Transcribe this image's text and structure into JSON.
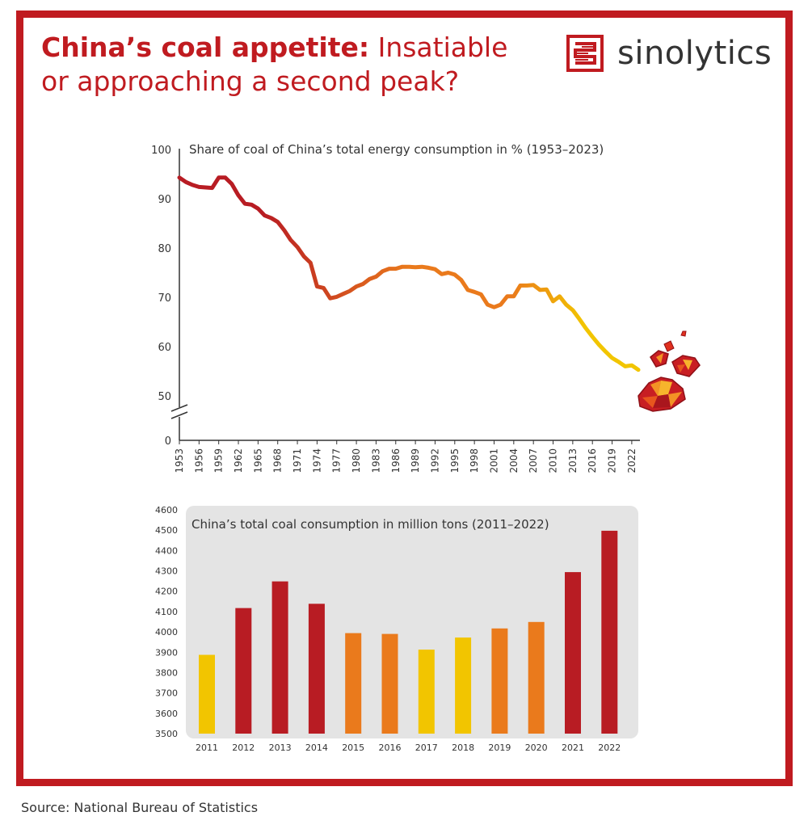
{
  "header": {
    "title_bold": "China’s coal appetite:",
    "title_rest": " Insatiable",
    "title_line2": "or approaching a second peak?",
    "logo_text": "sinolytics"
  },
  "footer": {
    "source": "Source: National Bureau of Statistics"
  },
  "colors": {
    "frame": "#c01b20",
    "dark_red": "#b81c23",
    "orange": "#ea7a1c",
    "yellow": "#f2c500",
    "panel": "#e4e4e4",
    "text": "#333333"
  },
  "chart_data": [
    {
      "type": "line",
      "title": "Share of coal of China’s total energy consumption in % (1953–2023)",
      "ylim": [
        50,
        100
      ],
      "y_axis_break": true,
      "y_ticks": [
        "100",
        "90",
        "80",
        "70",
        "60",
        "50",
        "0"
      ],
      "x_ticks": [
        "1953",
        "1956",
        "1959",
        "1962",
        "1965",
        "1968",
        "1971",
        "1974",
        "1977",
        "1980",
        "1983",
        "1986",
        "1989",
        "1992",
        "1995",
        "1998",
        "2001",
        "2004",
        "2007",
        "2010",
        "2013",
        "2016",
        "2019",
        "2022"
      ],
      "line_colors": [
        "#b81c23",
        "#ea7a1c",
        "#f2c500"
      ],
      "series": [
        {
          "x": [
            1953,
            1954,
            1955,
            1956,
            1957,
            1958,
            1959,
            1960,
            1961,
            1962,
            1963,
            1964,
            1965,
            1966,
            1967,
            1968,
            1969,
            1970,
            1971,
            1972,
            1973,
            1974,
            1975,
            1976,
            1977,
            1978,
            1979,
            1980,
            1981,
            1982,
            1983,
            1984,
            1985,
            1986,
            1987,
            1988,
            1989,
            1990,
            1991,
            1992,
            1993,
            1994,
            1995,
            1996,
            1997,
            1998,
            1999,
            2000,
            2001,
            2002,
            2003,
            2004,
            2005,
            2006,
            2007,
            2008,
            2009,
            2010,
            2011,
            2012,
            2013,
            2014,
            2015,
            2016,
            2017,
            2018,
            2019,
            2020,
            2021,
            2022,
            2023
          ],
          "values": [
            94.3,
            93.4,
            92.8,
            92.4,
            92.3,
            92.2,
            94.3,
            94.3,
            93,
            90.7,
            89,
            88.8,
            88,
            86.6,
            86.1,
            85.3,
            83.6,
            81.6,
            80.2,
            78.3,
            77,
            72.2,
            71.9,
            69.8,
            70.1,
            70.7,
            71.3,
            72.2,
            72.7,
            73.7,
            74.2,
            75.3,
            75.8,
            75.8,
            76.2,
            76.2,
            76.1,
            76.2,
            76,
            75.7,
            74.7,
            75.0,
            74.6,
            73.5,
            71.5,
            71.1,
            70.6,
            68.5,
            68.0,
            68.5,
            70.2,
            70.2,
            72.4,
            72.4,
            72.5,
            71.5,
            71.6,
            69.2,
            70.2,
            68.5,
            67.4,
            65.6,
            63.7,
            62.0,
            60.4,
            59.0,
            57.7,
            56.9,
            56.0,
            56.2,
            55.3
          ]
        }
      ]
    },
    {
      "type": "bar",
      "title": "China’s total coal consumption in million tons (2011–2022)",
      "ylim": [
        3500,
        4600
      ],
      "y_ticks": [
        "4600",
        "4500",
        "4400",
        "4300",
        "4200",
        "4100",
        "4000",
        "3900",
        "3800",
        "3700",
        "3600",
        "3500"
      ],
      "categories": [
        "2011",
        "2012",
        "2013",
        "2014",
        "2015",
        "2016",
        "2017",
        "2018",
        "2019",
        "2020",
        "2021",
        "2022"
      ],
      "values": [
        3887,
        4117,
        4248,
        4138,
        3994,
        3990,
        3913,
        3972,
        4017,
        4049,
        4294,
        4497
      ],
      "bar_colors": [
        "#f2c500",
        "#b81c23",
        "#b81c23",
        "#b81c23",
        "#ea7a1c",
        "#ea7a1c",
        "#f2c500",
        "#f2c500",
        "#ea7a1c",
        "#ea7a1c",
        "#b81c23",
        "#b81c23"
      ]
    }
  ]
}
